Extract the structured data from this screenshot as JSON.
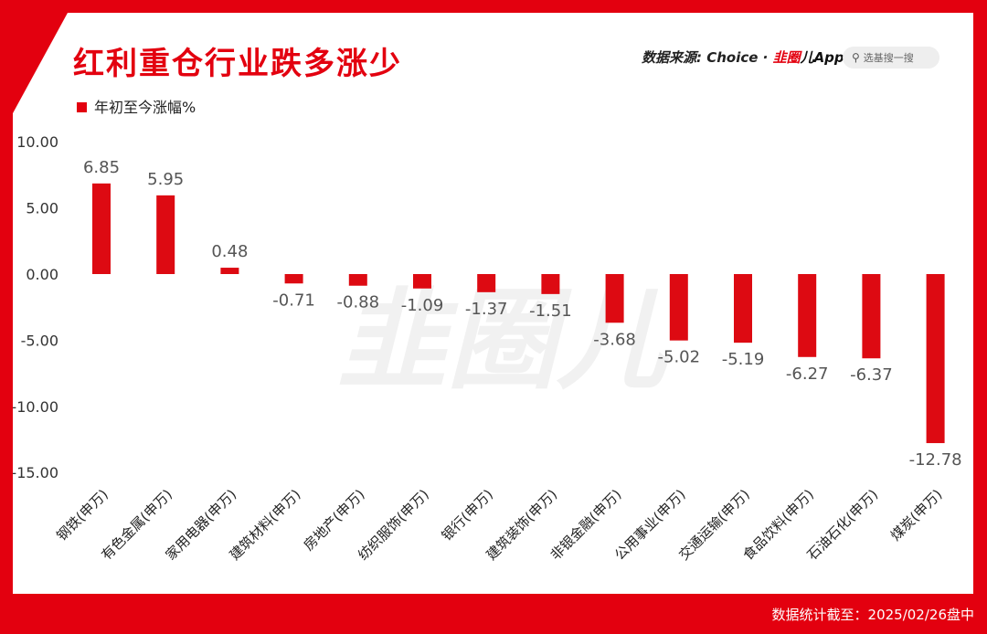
{
  "header": {
    "title": "红利重仓行业跌多涨少",
    "source_prefix": "数据来源: Choice · ",
    "brand_a": "韭圈",
    "brand_b": "儿App",
    "search_placeholder": "选基搜一搜",
    "search_icon": "search-icon"
  },
  "watermark": "韭圈儿",
  "footer": {
    "note": "数据统计截至：2025/02/26盘中"
  },
  "colors": {
    "accent": "#e3000f",
    "bar": "#dd0a12",
    "label": "#555555"
  },
  "chart_data": {
    "type": "bar",
    "categories": [
      "钢铁(申万)",
      "有色金属(申万)",
      "家用电器(申万)",
      "建筑材料(申万)",
      "房地产(申万)",
      "纺织服饰(申万)",
      "银行(申万)",
      "建筑装饰(申万)",
      "非银金融(申万)",
      "公用事业(申万)",
      "交通运输(申万)",
      "食品饮料(申万)",
      "石油石化(申万)",
      "煤炭(申万)"
    ],
    "series": [
      {
        "name": "年初至今涨幅%",
        "values": [
          6.85,
          5.95,
          0.48,
          -0.71,
          -0.88,
          -1.09,
          -1.37,
          -1.51,
          -3.68,
          -5.02,
          -5.19,
          -6.27,
          -6.37,
          -12.78
        ]
      }
    ],
    "value_labels": [
      "6.85",
      "5.95",
      "0.48",
      "-0.71",
      "-0.88",
      "-1.09",
      "-1.37",
      "-1.51",
      "-3.68",
      "-5.02",
      "-5.19",
      "-6.27",
      "-6.37",
      "-12.78"
    ],
    "yticks": [
      10,
      5,
      0,
      -5,
      -10,
      -15
    ],
    "ytick_labels": [
      "10.00",
      "5.00",
      "0.00",
      "-5.00",
      "-10.00",
      "-15.00"
    ],
    "ylim": [
      -15,
      10
    ],
    "legend": "top-left",
    "grid": false
  }
}
